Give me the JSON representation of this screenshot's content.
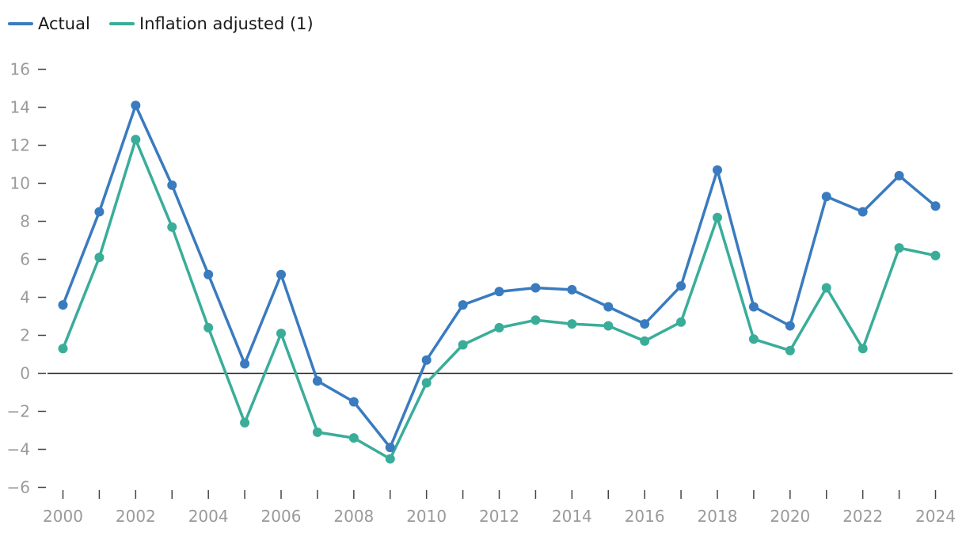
{
  "chart_data": {
    "type": "line",
    "title": "",
    "xlabel": "",
    "ylabel": "",
    "x": [
      2000,
      2001,
      2002,
      2003,
      2004,
      2005,
      2006,
      2007,
      2008,
      2009,
      2010,
      2011,
      2012,
      2013,
      2014,
      2015,
      2016,
      2017,
      2018,
      2019,
      2020,
      2021,
      2022,
      2023,
      2024
    ],
    "xticks": [
      "2000",
      "2002",
      "2004",
      "2006",
      "2008",
      "2010",
      "2012",
      "2014",
      "2016",
      "2018",
      "2020",
      "2022",
      "2024"
    ],
    "yticks": [
      "16",
      "14",
      "12",
      "10",
      "8",
      "6",
      "4",
      "2",
      "0",
      "−2",
      "−4",
      "−6"
    ],
    "ylim": [
      -6,
      16
    ],
    "grid": false,
    "legend_position": "top-left",
    "series": [
      {
        "name": "Actual",
        "color": "#3a7bbf",
        "values": [
          3.6,
          8.5,
          14.1,
          9.9,
          5.2,
          0.5,
          5.2,
          -0.4,
          -1.5,
          -3.9,
          0.7,
          3.6,
          4.3,
          4.5,
          4.4,
          3.5,
          2.6,
          4.6,
          10.7,
          3.5,
          2.5,
          9.3,
          8.5,
          10.4,
          8.8
        ]
      },
      {
        "name": "Inflation adjusted (1)",
        "color": "#3aad99",
        "values": [
          1.3,
          6.1,
          12.3,
          7.7,
          2.4,
          -2.6,
          2.1,
          -3.1,
          -3.4,
          -4.5,
          -0.5,
          1.5,
          2.4,
          2.8,
          2.6,
          2.5,
          1.7,
          2.7,
          8.2,
          1.8,
          1.2,
          4.5,
          1.3,
          6.6,
          6.2
        ]
      }
    ]
  }
}
